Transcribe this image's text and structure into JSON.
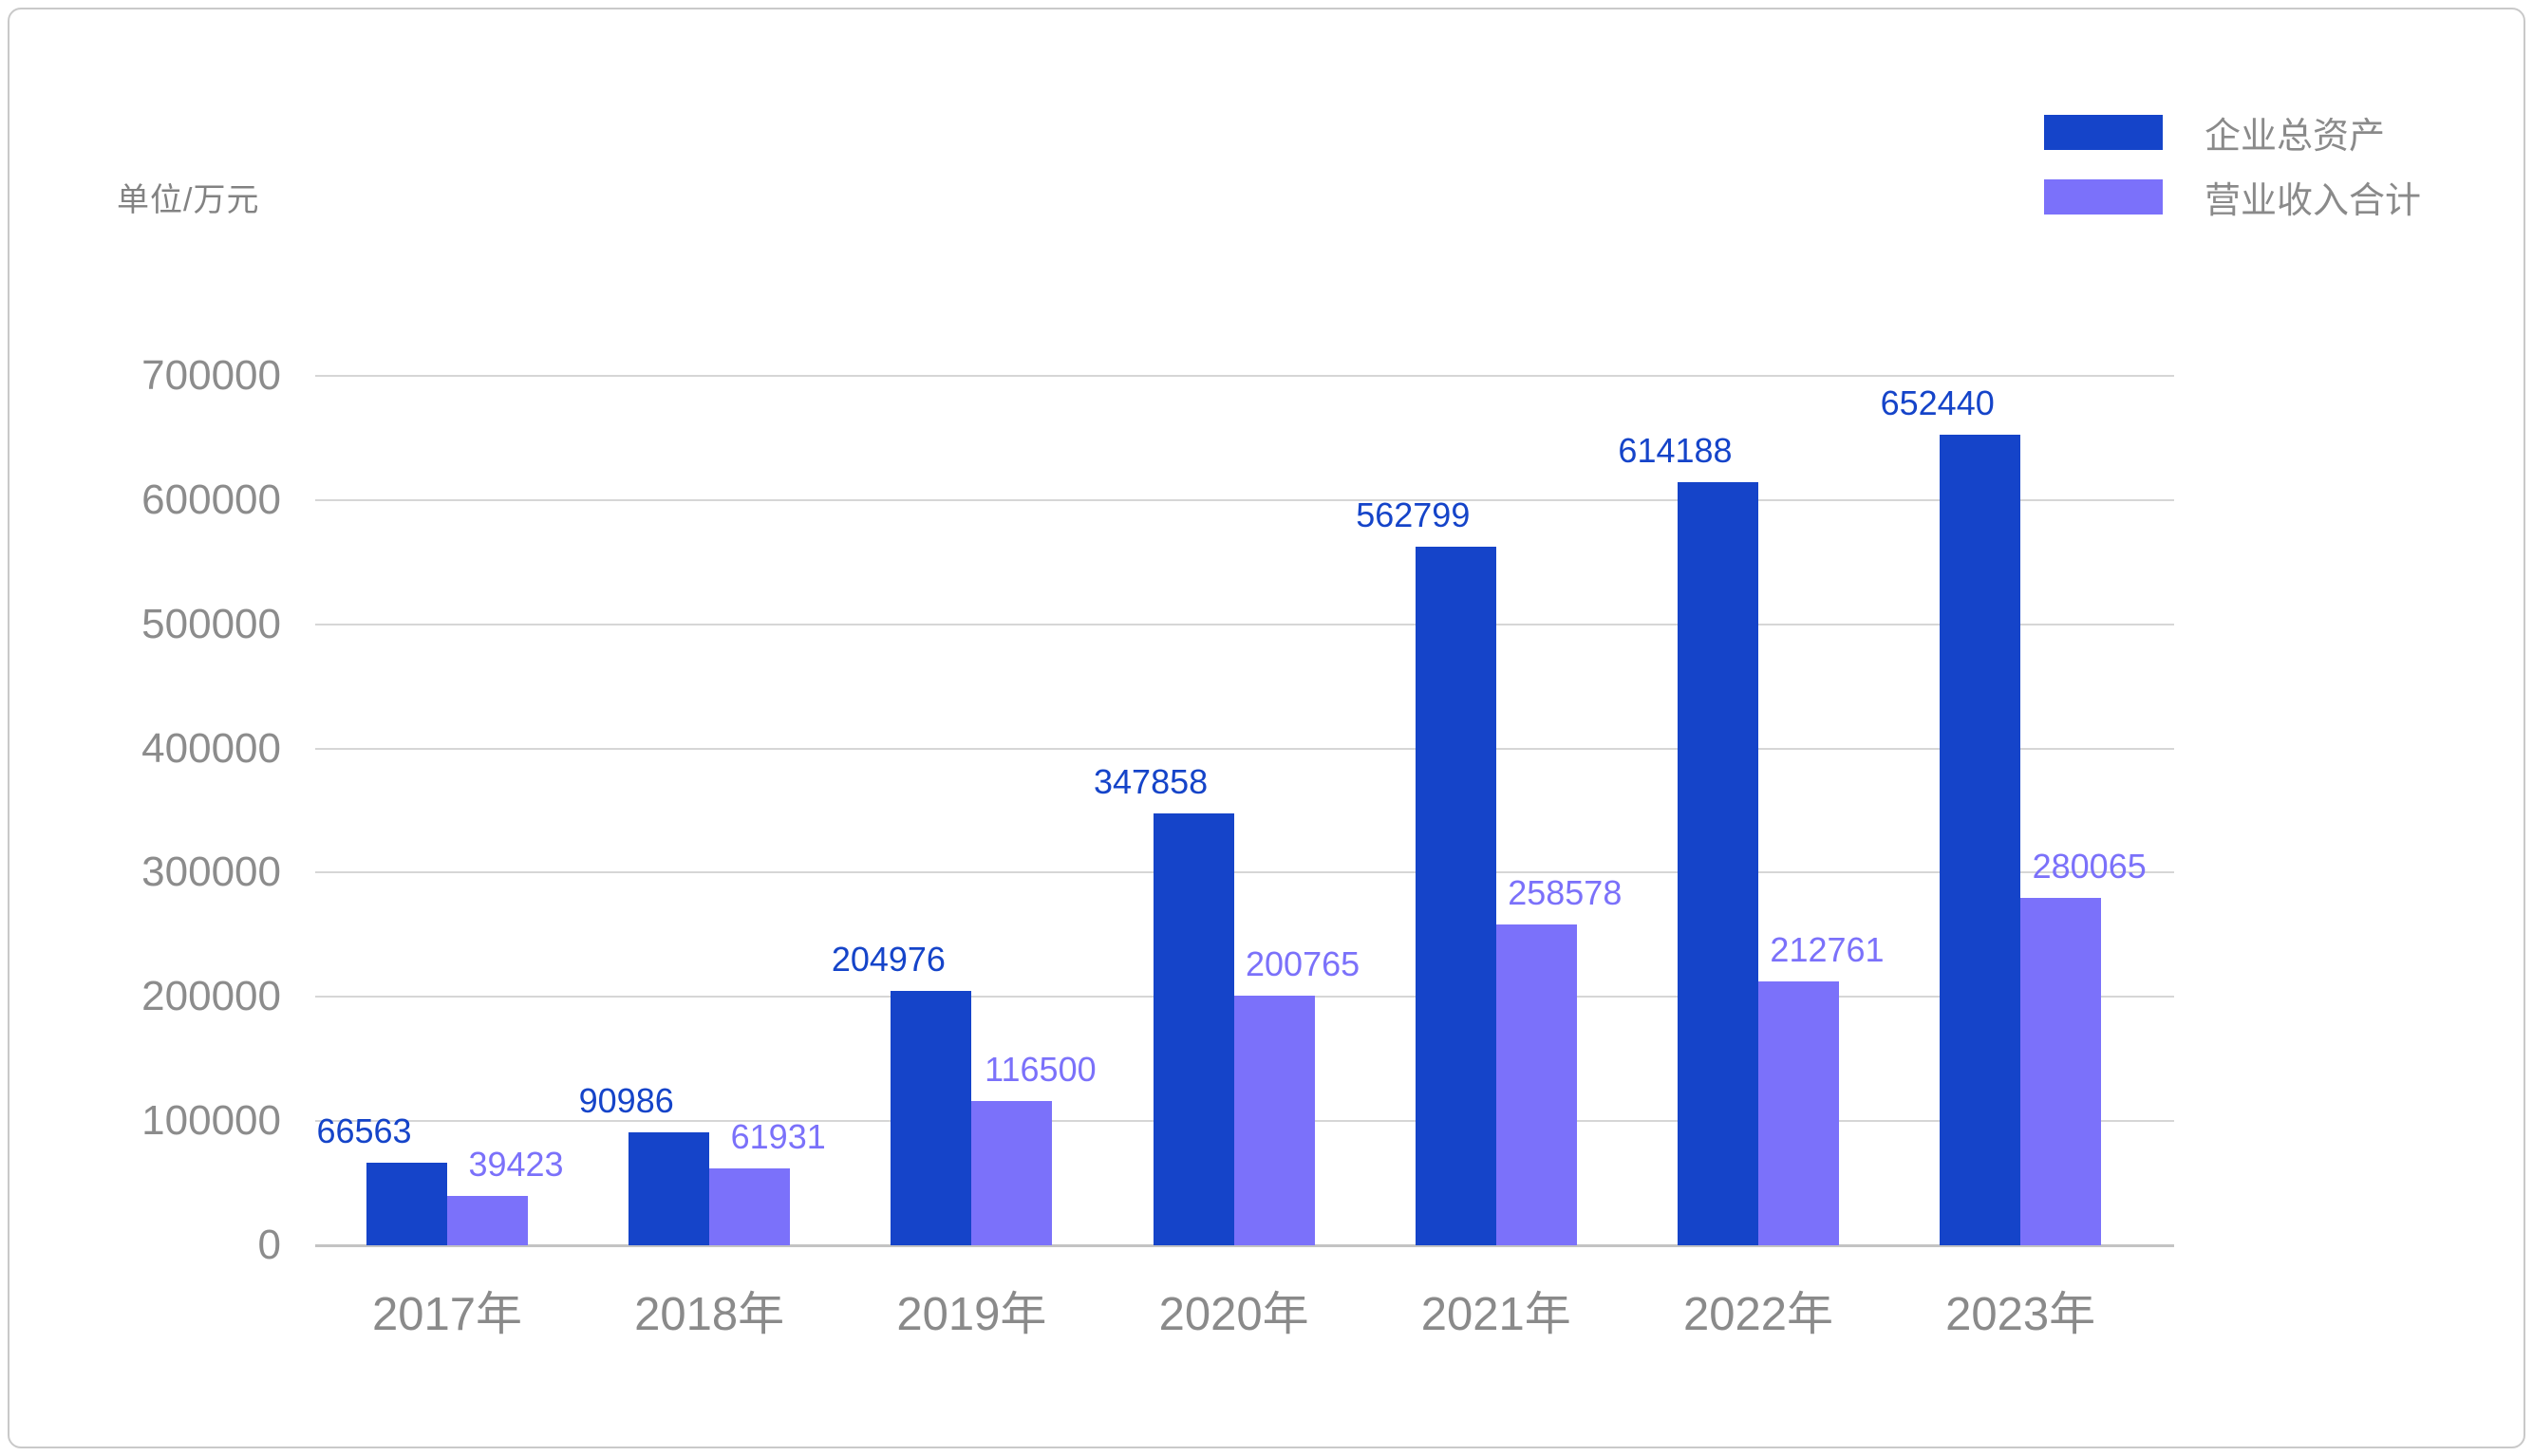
{
  "chart_data": {
    "type": "bar",
    "title": "",
    "ylabel": "单位/万元",
    "categories": [
      "2017年",
      "2018年",
      "2019年",
      "2020年",
      "2021年",
      "2022年",
      "2023年"
    ],
    "series": [
      {
        "key": "enterprise-total-assets",
        "name": "企业总资产",
        "color": "#1544C9",
        "values": [
          66563,
          90986,
          204976,
          347858,
          562799,
          614188,
          652440
        ]
      },
      {
        "key": "operating-revenue-total",
        "name": "营业收入合计",
        "color": "#7B71FA",
        "values": [
          39423,
          61931,
          116500,
          200765,
          258578,
          212761,
          280065
        ]
      }
    ],
    "ylim": [
      0,
      700000
    ],
    "ytick_step": 100000,
    "yticks": [
      "0",
      "100000",
      "200000",
      "300000",
      "400000",
      "500000",
      "600000",
      "700000"
    ],
    "grid": true,
    "legend_position": "top-right",
    "bar_labels_visible": true
  },
  "colors": {
    "grid_line": "#D6D6D6",
    "axis_line": "#C3C3C3",
    "tick_text": "#8C8C8C",
    "category_text": "#8A8A8A",
    "legend_text": "#8A8A8A",
    "unit_text": "#828282",
    "frame_border": "#C9C9C9",
    "background": "#FFFFFF"
  }
}
